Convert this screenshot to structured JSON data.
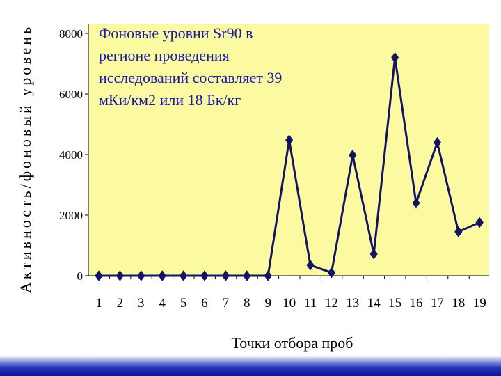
{
  "colors": {
    "plot_bg": "#fbfaa0",
    "line": "#141464",
    "marker": "#141464",
    "annotation_text": "#1a1aa8",
    "slide_edge": "#1a2aa8"
  },
  "chart_data": {
    "type": "line",
    "title": "",
    "annotation": [
      "Фоновые уровни Sr90 в",
      "регионе проведения",
      "исследований составляет 39",
      "мКи/км2 или 18 Бк/кг"
    ],
    "xlabel": "Точки отбора проб",
    "ylabel": "Активность/фоновый уровень",
    "categories": [
      "1",
      "2",
      "3",
      "4",
      "5",
      "6",
      "7",
      "8",
      "9",
      "10",
      "11",
      "12",
      "13",
      "14",
      "15",
      "16",
      "17",
      "18",
      "19"
    ],
    "yticks": [
      "0",
      "2000",
      "4000",
      "6000",
      "8000"
    ],
    "ylim": [
      0,
      8000
    ],
    "grid": false,
    "legend": "none",
    "series": [
      {
        "values": [
          0,
          0,
          0,
          0,
          0,
          0,
          0,
          0,
          0,
          4480,
          350,
          100,
          3980,
          720,
          7200,
          2400,
          4400,
          1450,
          1760
        ]
      }
    ]
  }
}
